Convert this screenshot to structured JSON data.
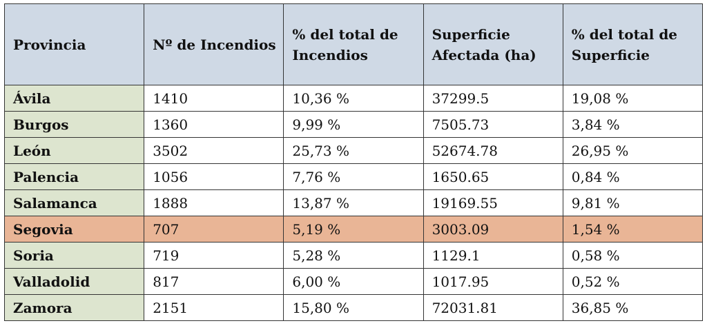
{
  "table": {
    "header": [
      "Provincia",
      "Nº de Incendios",
      "% del total de Incendios",
      "Superficie Afectada (ha)",
      "% del total de Superficie"
    ],
    "rows": [
      [
        "Ávila",
        "1410",
        "10,36 %",
        "37299.5",
        "19,08 %"
      ],
      [
        "Burgos",
        "1360",
        "9,99 %",
        "7505.73",
        "3,84 %"
      ],
      [
        "León",
        "3502",
        "25,73 %",
        "52674.78",
        "26,95 %"
      ],
      [
        "Palencia",
        "1056",
        "7,76 %",
        "1650.65",
        "0,84 %"
      ],
      [
        "Salamanca",
        "1888",
        "13,87 %",
        "19169.55",
        "9,81 %"
      ],
      [
        "Segovia",
        "707",
        "5,19 %",
        "3003.09",
        "1,54 %"
      ],
      [
        "Soria",
        "719",
        "5,28 %",
        "1129.1",
        "0,58 %"
      ],
      [
        "Valladolid",
        "817",
        "6,00 %",
        "1017.95",
        "0,52 %"
      ],
      [
        "Zamora",
        "2151",
        "15,80 %",
        "72031.81",
        "36,85 %"
      ]
    ]
  }
}
